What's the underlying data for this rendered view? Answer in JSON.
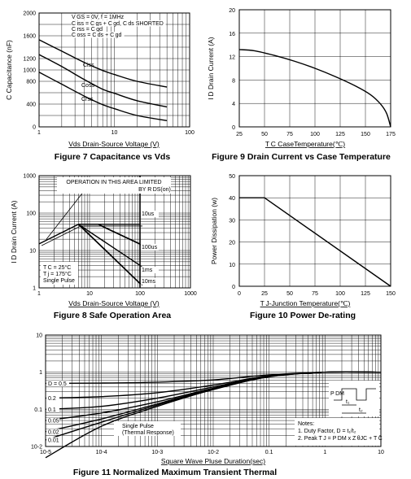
{
  "chart_data": [
    {
      "id": "fig7",
      "type": "line",
      "title": "Figure 7 Capacitance vs Vds",
      "xlabel": "Vds Drain-Source Voltage (V)",
      "ylabel": "C Capacitance (nF)",
      "xscale": "log",
      "xlim": [
        1,
        100
      ],
      "ylim": [
        0,
        2000
      ],
      "xticks": [
        "1",
        "10",
        "100"
      ],
      "yticks": [
        "0",
        "400",
        "800",
        "1000",
        "1200",
        "1600",
        "2000"
      ],
      "annotations": [
        "V GS = 0V,     f = 1MHz",
        "C iss = C gs + C gd,  C ds SHORTED",
        "C rss = C gd",
        "C oss = C ds + C gd"
      ],
      "series": [
        {
          "name": "Ciss",
          "x": [
            1,
            2,
            4,
            7,
            10,
            20,
            50
          ],
          "y": [
            1530,
            1330,
            1130,
            990,
            920,
            800,
            700
          ]
        },
        {
          "name": "Coss",
          "x": [
            1,
            2,
            4,
            7,
            10,
            20,
            50
          ],
          "y": [
            1270,
            1060,
            830,
            660,
            590,
            460,
            350
          ]
        },
        {
          "name": "Crss",
          "x": [
            1,
            2,
            4,
            7,
            10,
            20,
            50
          ],
          "y": [
            960,
            750,
            540,
            390,
            320,
            200,
            110
          ]
        }
      ]
    },
    {
      "id": "fig9",
      "type": "line",
      "title": "Figure 9 Drain Current vs Case Temperature",
      "xlabel": "T C CaseTemperature(℃)",
      "ylabel": "I D Drain Current (A)",
      "xlim": [
        25,
        175
      ],
      "ylim": [
        0,
        20
      ],
      "xticks": [
        "25",
        "50",
        "75",
        "100",
        "125",
        "150",
        "175"
      ],
      "yticks": [
        "0",
        "4",
        "8",
        "12",
        "16",
        "20"
      ],
      "series": [
        {
          "name": "ID",
          "x": [
            25,
            40,
            60,
            80,
            100,
            120,
            140,
            155,
            165,
            171,
            175
          ],
          "y": [
            13.2,
            13.0,
            12.2,
            11.2,
            10.0,
            8.6,
            7.0,
            5.5,
            3.9,
            2.3,
            0
          ]
        }
      ]
    },
    {
      "id": "fig8",
      "type": "line",
      "title": "Figure 8  Safe Operation Area",
      "xlabel": "Vds Drain-Source Voltage (V)",
      "ylabel": "I D Drain Current (A)",
      "xscale": "log",
      "yscale": "log",
      "xlim": [
        1,
        1000
      ],
      "ylim": [
        1,
        1000
      ],
      "xticks": [
        "1",
        "10",
        "100",
        "1000"
      ],
      "yticks": [
        "1",
        "10",
        "100",
        "1000"
      ],
      "annotations": [
        "OPERATION IN THIS AREA LIMITED",
        "BY R DS(on)",
        "T C = 25°C",
        "T j = 175°C",
        "Single Pulse"
      ],
      "series": [
        {
          "name": "10us",
          "x": [
            1,
            6,
            100
          ],
          "y": [
            15,
            50,
            50
          ]
        },
        {
          "name": "100us",
          "x": [
            6,
            15,
            100
          ],
          "y": [
            50,
            50,
            15
          ]
        },
        {
          "name": "1ms",
          "x": [
            6,
            100
          ],
          "y": [
            50,
            4
          ]
        },
        {
          "name": "10ms",
          "x": [
            6,
            100
          ],
          "y": [
            50,
            1.3
          ]
        }
      ]
    },
    {
      "id": "fig10",
      "type": "line",
      "title": "Figure 10 Power De-rating",
      "xlabel": "T J-Junction Temperature(℃)",
      "ylabel": "Power Dissipation (w)",
      "xlim": [
        0,
        150
      ],
      "ylim": [
        0,
        50
      ],
      "xticks": [
        "0",
        "25",
        "50",
        "75",
        "100",
        "125",
        "150"
      ],
      "yticks": [
        "0",
        "10",
        "20",
        "30",
        "40",
        "50"
      ],
      "series": [
        {
          "name": "PD",
          "x": [
            0,
            25,
            150
          ],
          "y": [
            40,
            40,
            0
          ]
        }
      ]
    },
    {
      "id": "fig11",
      "type": "line",
      "title": "Figure 11 Normalized Maximum Transient Thermal",
      "xlabel": "Square Wave Pluse Duration(sec)",
      "ylabel": "",
      "xscale": "log",
      "yscale": "log",
      "xlim": [
        1e-05,
        10
      ],
      "ylim": [
        0.01,
        10
      ],
      "xticks": [
        "10-5",
        "10-4",
        "10-3",
        "10-2",
        "0.1",
        "1",
        "10"
      ],
      "yticks": [
        "10-2",
        "0.1",
        "1",
        "10"
      ],
      "annotations": [
        "Single Pulse",
        "(Thermal Response)",
        "Notes:",
        "1.  Duty Factor, D = t₁/t₂",
        "2.  Peak T J = P DM x Z θJC + T C",
        "P DM",
        "t₁",
        "t₂"
      ],
      "series": [
        {
          "name": "D = 0.5",
          "x": [
            1e-05,
            0.0001,
            0.001,
            0.01,
            0.1,
            1,
            10
          ],
          "y": [
            0.5,
            0.51,
            0.54,
            0.62,
            0.85,
            1.0,
            1.0
          ]
        },
        {
          "name": "0.2",
          "x": [
            1e-05,
            0.0001,
            0.001,
            0.01,
            0.1,
            1,
            10
          ],
          "y": [
            0.2,
            0.22,
            0.28,
            0.45,
            0.8,
            1.0,
            1.0
          ]
        },
        {
          "name": "0.1",
          "x": [
            1e-05,
            0.0001,
            0.001,
            0.01,
            0.1,
            1,
            10
          ],
          "y": [
            0.1,
            0.12,
            0.2,
            0.4,
            0.78,
            1.0,
            1.0
          ]
        },
        {
          "name": "0.05",
          "x": [
            1e-05,
            0.0001,
            0.001,
            0.01,
            0.1,
            1,
            10
          ],
          "y": [
            0.05,
            0.08,
            0.16,
            0.37,
            0.77,
            1.0,
            1.0
          ]
        },
        {
          "name": "0.02",
          "x": [
            1e-05,
            0.0001,
            0.001,
            0.01,
            0.1,
            1,
            10
          ],
          "y": [
            0.025,
            0.055,
            0.14,
            0.36,
            0.76,
            1.0,
            1.0
          ]
        },
        {
          "name": "0.01",
          "x": [
            1e-05,
            0.0001,
            0.001,
            0.01,
            0.1,
            1,
            10
          ],
          "y": [
            0.015,
            0.045,
            0.13,
            0.35,
            0.76,
            1.0,
            1.0
          ]
        },
        {
          "name": "Single Pulse",
          "x": [
            1e-05,
            0.0001,
            0.001,
            0.01,
            0.1,
            1,
            10
          ],
          "y": [
            0.005,
            0.035,
            0.12,
            0.34,
            0.75,
            1.0,
            1.0
          ]
        }
      ]
    }
  ]
}
